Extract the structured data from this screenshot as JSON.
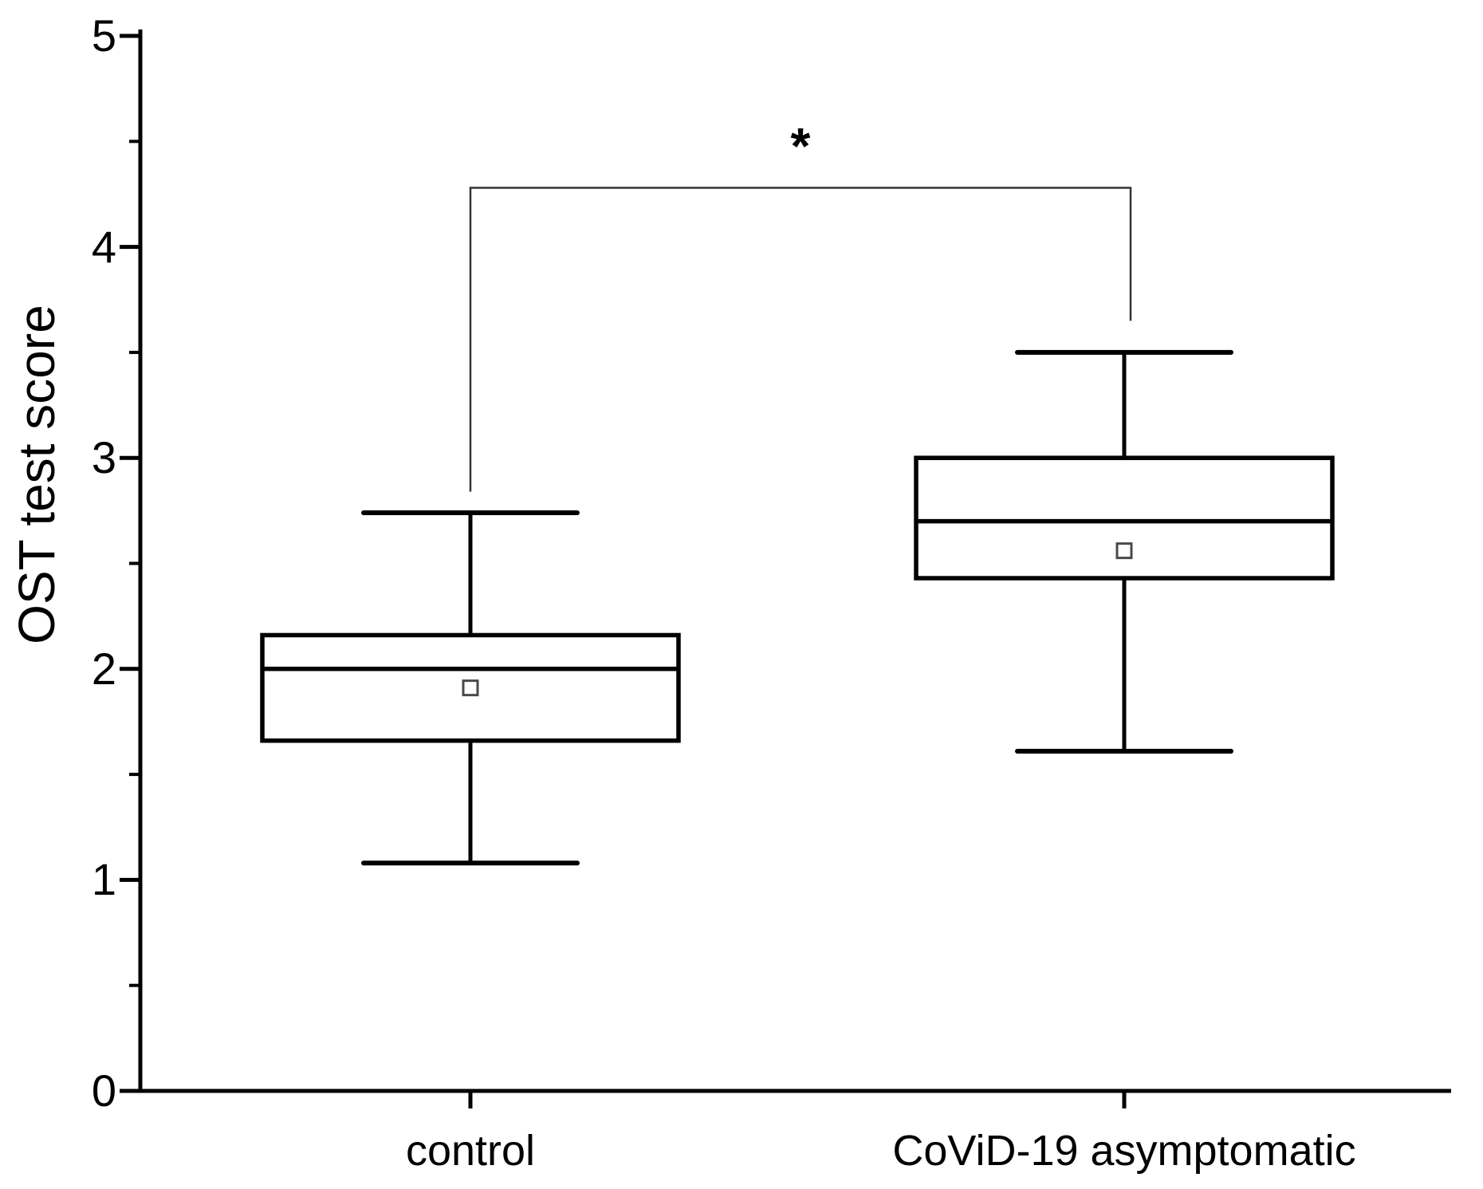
{
  "figure": {
    "background_color": "#ffffff",
    "ink_color": "#000000",
    "mean_marker_color": "#4a4a4a",
    "bracket_color": "#333333"
  },
  "chart_data": {
    "type": "boxplot",
    "title": "",
    "xlabel": "",
    "ylabel": "OST test score",
    "ylim": [
      0,
      5
    ],
    "y_major_ticks": [
      0,
      1,
      2,
      3,
      4,
      5
    ],
    "y_minor_ticks": [
      0.5,
      1.5,
      2.5,
      3.5,
      4.5
    ],
    "grid": "off",
    "legend": "none",
    "categories": [
      "control",
      "CoViD-19 asymptomatic"
    ],
    "series": [
      {
        "name": "control",
        "whisker_low": 1.08,
        "q1": 1.66,
        "median": 2.0,
        "mean": 1.91,
        "q3": 2.16,
        "whisker_high": 2.74
      },
      {
        "name": "CoViD-19 asymptomatic",
        "whisker_low": 1.61,
        "q1": 2.43,
        "median": 2.7,
        "mean": 2.56,
        "q3": 3.0,
        "whisker_high": 3.5
      }
    ],
    "significance": {
      "label": "*",
      "between": [
        "control",
        "CoViD-19 asymptomatic"
      ],
      "bar_y": 4.28,
      "left_drop_to": 2.84,
      "right_drop_to": 3.65
    }
  }
}
